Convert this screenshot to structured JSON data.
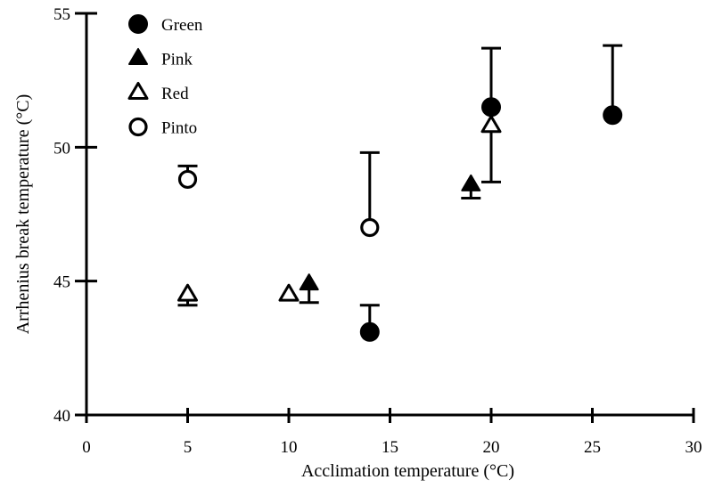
{
  "chart_data": {
    "type": "scatter",
    "title": "",
    "xlabel": "Acclimation temperature (°C)",
    "ylabel": "Arrhenius break temperature (°C)",
    "xlim": [
      0,
      30
    ],
    "ylim": [
      40,
      55
    ],
    "x_ticks": [
      0,
      5,
      10,
      15,
      20,
      25,
      30
    ],
    "y_ticks": [
      40,
      45,
      50,
      55
    ],
    "grid": false,
    "legend_position": "top-left",
    "series": [
      {
        "name": "Green",
        "marker": "filled-circle",
        "points": [
          {
            "x": 14,
            "y": 43.1,
            "err_hi": 44.1
          },
          {
            "x": 20,
            "y": 51.5,
            "err_hi": 53.7
          },
          {
            "x": 26,
            "y": 51.2,
            "err_hi": 53.8
          }
        ]
      },
      {
        "name": "Pink",
        "marker": "filled-triangle",
        "points": [
          {
            "x": 11,
            "y": 44.9,
            "err_lo": 44.2
          },
          {
            "x": 19,
            "y": 48.6,
            "err_lo": 48.1
          }
        ]
      },
      {
        "name": "Red",
        "marker": "open-triangle",
        "points": [
          {
            "x": 5,
            "y": 44.5,
            "err_lo": 44.1
          },
          {
            "x": 10,
            "y": 44.5
          },
          {
            "x": 20,
            "y": 50.8,
            "err_lo": 48.7
          }
        ]
      },
      {
        "name": "Pinto",
        "marker": "open-circle",
        "points": [
          {
            "x": 5,
            "y": 48.8,
            "err_hi": 49.3
          },
          {
            "x": 14,
            "y": 47,
            "err_hi": 49.8
          }
        ]
      }
    ]
  }
}
